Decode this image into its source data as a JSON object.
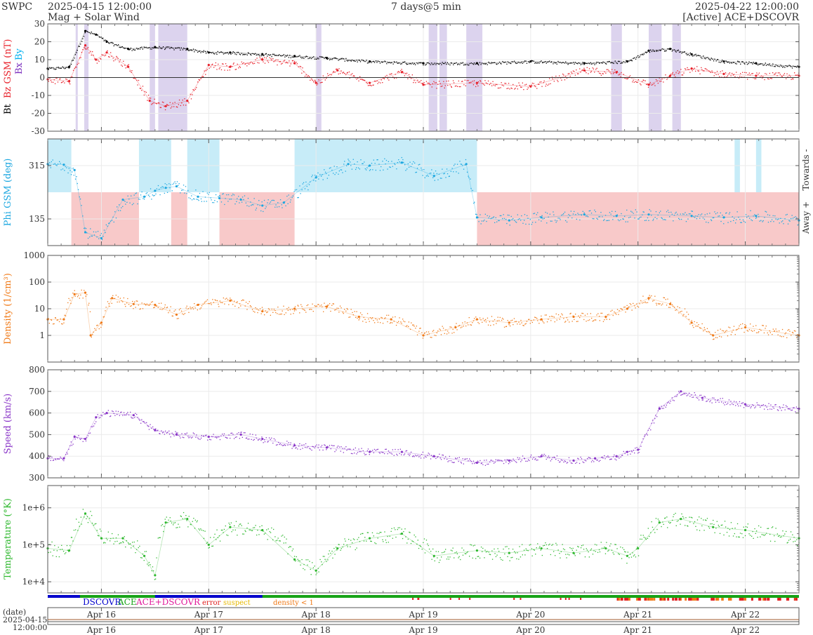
{
  "header": {
    "logo": "SWPC",
    "start_time": "2025-04-15 12:00:00",
    "subtitle": "Mag + Solar Wind",
    "span": "7 days@5 min",
    "end_time": "2025-04-22 12:00:00",
    "source": "[Active] ACE+DSCOVR"
  },
  "footer": {
    "date_label": "(date)",
    "start_date": "2025-04-15",
    "start_clock": "12:00:00"
  },
  "legend": {
    "dscovr": "DSCOVR",
    "ace": "ACE",
    "ace_dscovr": "ACE+DSCOVR",
    "error": "error",
    "suspect": "suspect",
    "density_lt1": "density < 1"
  },
  "colors": {
    "bt": "#000000",
    "bz": "#e8202a",
    "by": "#00b0f0",
    "bx": "#7b2fbe",
    "phi": "#1ca7e0",
    "towards_fill": "#c7ecf8",
    "away_fill": "#f8c9c9",
    "bz_shade": "#dcd3ee",
    "density": "#f07a18",
    "speed": "#8a36c8",
    "temperature": "#2fb82f",
    "dscovr": "#0000cc",
    "ace": "#17a317",
    "ace_dscovr": "#e0189a",
    "error": "#e02020",
    "suspect": "#e6b800",
    "density_lt1": "#f07a18"
  },
  "chart_data": [
    {
      "type": "line",
      "panel": "mag",
      "ylabel_parts": [
        "Bt",
        "Bz GSM (nT)",
        "Bx",
        "By"
      ],
      "ylim": [
        -30,
        30
      ],
      "yticks": [
        -30,
        -20,
        -10,
        0,
        10,
        20,
        30
      ],
      "x_days": [
        "2025-04-15 12:00",
        "2025-04-22 12:00"
      ],
      "series": [
        {
          "name": "Bt",
          "x": [
            0,
            0.2,
            0.35,
            0.45,
            0.55,
            0.75,
            1.0,
            1.3,
            1.5,
            1.7,
            2.0,
            2.3,
            2.6,
            3.0,
            3.5,
            4.0,
            4.5,
            5.0,
            5.4,
            5.6,
            5.8,
            6.0,
            6.3,
            6.6,
            7.0
          ],
          "y": [
            5,
            6,
            26,
            24,
            20,
            16,
            17,
            16,
            14,
            14,
            13,
            12,
            11,
            9,
            8,
            8,
            9,
            8,
            9,
            15,
            16,
            13,
            9,
            8,
            6
          ]
        },
        {
          "name": "Bz",
          "x": [
            0,
            0.2,
            0.35,
            0.45,
            0.55,
            0.75,
            0.95,
            1.1,
            1.3,
            1.5,
            1.7,
            2.0,
            2.3,
            2.5,
            2.7,
            3.0,
            3.3,
            3.5,
            4.0,
            4.5,
            5.0,
            5.3,
            5.6,
            5.8,
            6.0,
            6.3,
            6.6,
            7.0
          ],
          "y": [
            -1,
            -2,
            18,
            10,
            14,
            6,
            -13,
            -16,
            -13,
            7,
            6,
            10,
            8,
            -3,
            4,
            -3,
            3,
            -4,
            -3,
            -5,
            4,
            3,
            -4,
            1,
            5,
            2,
            1,
            1
          ]
        }
      ],
      "bz_south_shading_days": [
        [
          0.26,
          0.28
        ],
        [
          0.34,
          0.38
        ],
        [
          0.95,
          1.0
        ],
        [
          1.03,
          1.3
        ],
        [
          2.5,
          2.55
        ],
        [
          3.55,
          3.63
        ],
        [
          3.65,
          3.72
        ],
        [
          3.9,
          4.05
        ],
        [
          5.25,
          5.35
        ],
        [
          5.6,
          5.72
        ],
        [
          5.82,
          5.9
        ]
      ]
    },
    {
      "type": "scatter",
      "panel": "phi",
      "ylabel": "Phi GSM (deg)",
      "side_labels": [
        "Towards -",
        "Away +"
      ],
      "ylim": [
        45,
        405
      ],
      "yticks": [
        135,
        315
      ],
      "series": [
        {
          "name": "Phi",
          "x": [
            0,
            0.15,
            0.25,
            0.35,
            0.5,
            0.7,
            0.9,
            1.0,
            1.1,
            1.2,
            1.4,
            1.6,
            1.8,
            2.0,
            2.2,
            2.5,
            2.8,
            3.0,
            3.3,
            3.6,
            3.9,
            4.0,
            4.3,
            4.6,
            5.0,
            5.3,
            5.6,
            6.0,
            6.3,
            6.6,
            7.0
          ],
          "y": [
            320,
            318,
            300,
            90,
            70,
            200,
            210,
            230,
            240,
            245,
            210,
            205,
            200,
            180,
            190,
            275,
            320,
            315,
            325,
            280,
            320,
            140,
            130,
            140,
            150,
            145,
            150,
            145,
            140,
            145,
            130
          ]
        }
      ],
      "towards_days": [
        [
          0,
          0.22
        ],
        [
          0.85,
          1.15
        ],
        [
          1.3,
          1.6
        ],
        [
          2.3,
          4.0
        ],
        [
          6.4,
          6.45
        ],
        [
          6.6,
          6.65
        ]
      ],
      "away_days": [
        [
          0.22,
          0.85
        ],
        [
          1.15,
          1.3
        ],
        [
          1.6,
          2.3
        ],
        [
          4.0,
          7.0
        ]
      ]
    },
    {
      "type": "line",
      "panel": "density",
      "ylabel": "Density (1/cm³)",
      "scale": "log",
      "ylim": [
        0.1,
        1000
      ],
      "yticks": [
        1,
        10,
        100,
        1000
      ],
      "series": [
        {
          "name": "Density",
          "x": [
            0,
            0.15,
            0.25,
            0.35,
            0.4,
            0.5,
            0.6,
            0.8,
            1.0,
            1.2,
            1.4,
            1.7,
            2.0,
            2.3,
            2.6,
            2.9,
            3.2,
            3.5,
            3.8,
            4.0,
            4.3,
            4.6,
            4.9,
            5.2,
            5.4,
            5.6,
            5.8,
            6.0,
            6.2,
            6.5,
            7.0
          ],
          "y": [
            4,
            4,
            35,
            40,
            1,
            3,
            25,
            15,
            14,
            6,
            14,
            20,
            8,
            10,
            12,
            5,
            4,
            1,
            2,
            4,
            3,
            4,
            5,
            5,
            10,
            25,
            15,
            3,
            1,
            2,
            1
          ]
        }
      ]
    },
    {
      "type": "line",
      "panel": "speed",
      "ylabel": "Speed (km/s)",
      "ylim": [
        300,
        800
      ],
      "yticks": [
        300,
        400,
        500,
        600,
        700,
        800
      ],
      "series": [
        {
          "name": "Speed",
          "x": [
            0,
            0.15,
            0.25,
            0.35,
            0.45,
            0.55,
            0.8,
            1.0,
            1.2,
            1.5,
            1.8,
            2.0,
            2.3,
            2.6,
            3.0,
            3.3,
            3.6,
            4.0,
            4.3,
            4.6,
            4.9,
            5.1,
            5.3,
            5.4,
            5.5,
            5.7,
            5.9,
            6.1,
            6.5,
            7.0
          ],
          "y": [
            390,
            390,
            490,
            480,
            580,
            600,
            590,
            520,
            500,
            490,
            500,
            480,
            450,
            440,
            420,
            420,
            400,
            370,
            380,
            400,
            380,
            390,
            400,
            420,
            430,
            620,
            700,
            670,
            640,
            620
          ]
        }
      ]
    },
    {
      "type": "line",
      "panel": "temperature",
      "ylabel": "Temperature (°K)",
      "scale": "log",
      "ylim": [
        5000,
        4000000
      ],
      "yticks": [
        "1e+4",
        "1e+5",
        "1e+6"
      ],
      "ytick_values": [
        10000,
        100000,
        1000000
      ],
      "series": [
        {
          "name": "Temperature",
          "x": [
            0,
            0.2,
            0.35,
            0.5,
            0.7,
            0.9,
            1.0,
            1.1,
            1.3,
            1.5,
            1.7,
            2.0,
            2.3,
            2.5,
            2.7,
            3.0,
            3.3,
            3.6,
            4.0,
            4.3,
            4.6,
            4.9,
            5.2,
            5.4,
            5.5,
            5.7,
            5.9,
            6.2,
            6.5,
            7.0
          ],
          "y": [
            80000,
            70000,
            700000,
            150000,
            150000,
            50000,
            15000,
            400000,
            500000,
            100000,
            300000,
            250000,
            40000,
            20000,
            80000,
            150000,
            200000,
            50000,
            70000,
            60000,
            80000,
            60000,
            80000,
            50000,
            80000,
            400000,
            500000,
            300000,
            250000,
            150000
          ]
        }
      ]
    }
  ],
  "x_axis": {
    "ticks": [
      "Apr 16",
      "Apr 17",
      "Apr 18",
      "Apr 19",
      "Apr 20",
      "Apr 21",
      "Apr 22"
    ],
    "tick_days": [
      0.5,
      1.5,
      2.5,
      3.5,
      4.5,
      5.5,
      6.5
    ],
    "range_days": [
      0,
      7
    ]
  },
  "source_bar": {
    "dscovr_days": [
      [
        0,
        0.3
      ],
      [
        1.0,
        2.0
      ]
    ],
    "ace_days": [
      [
        0.3,
        1.0
      ],
      [
        2.0,
        7.0
      ]
    ]
  }
}
